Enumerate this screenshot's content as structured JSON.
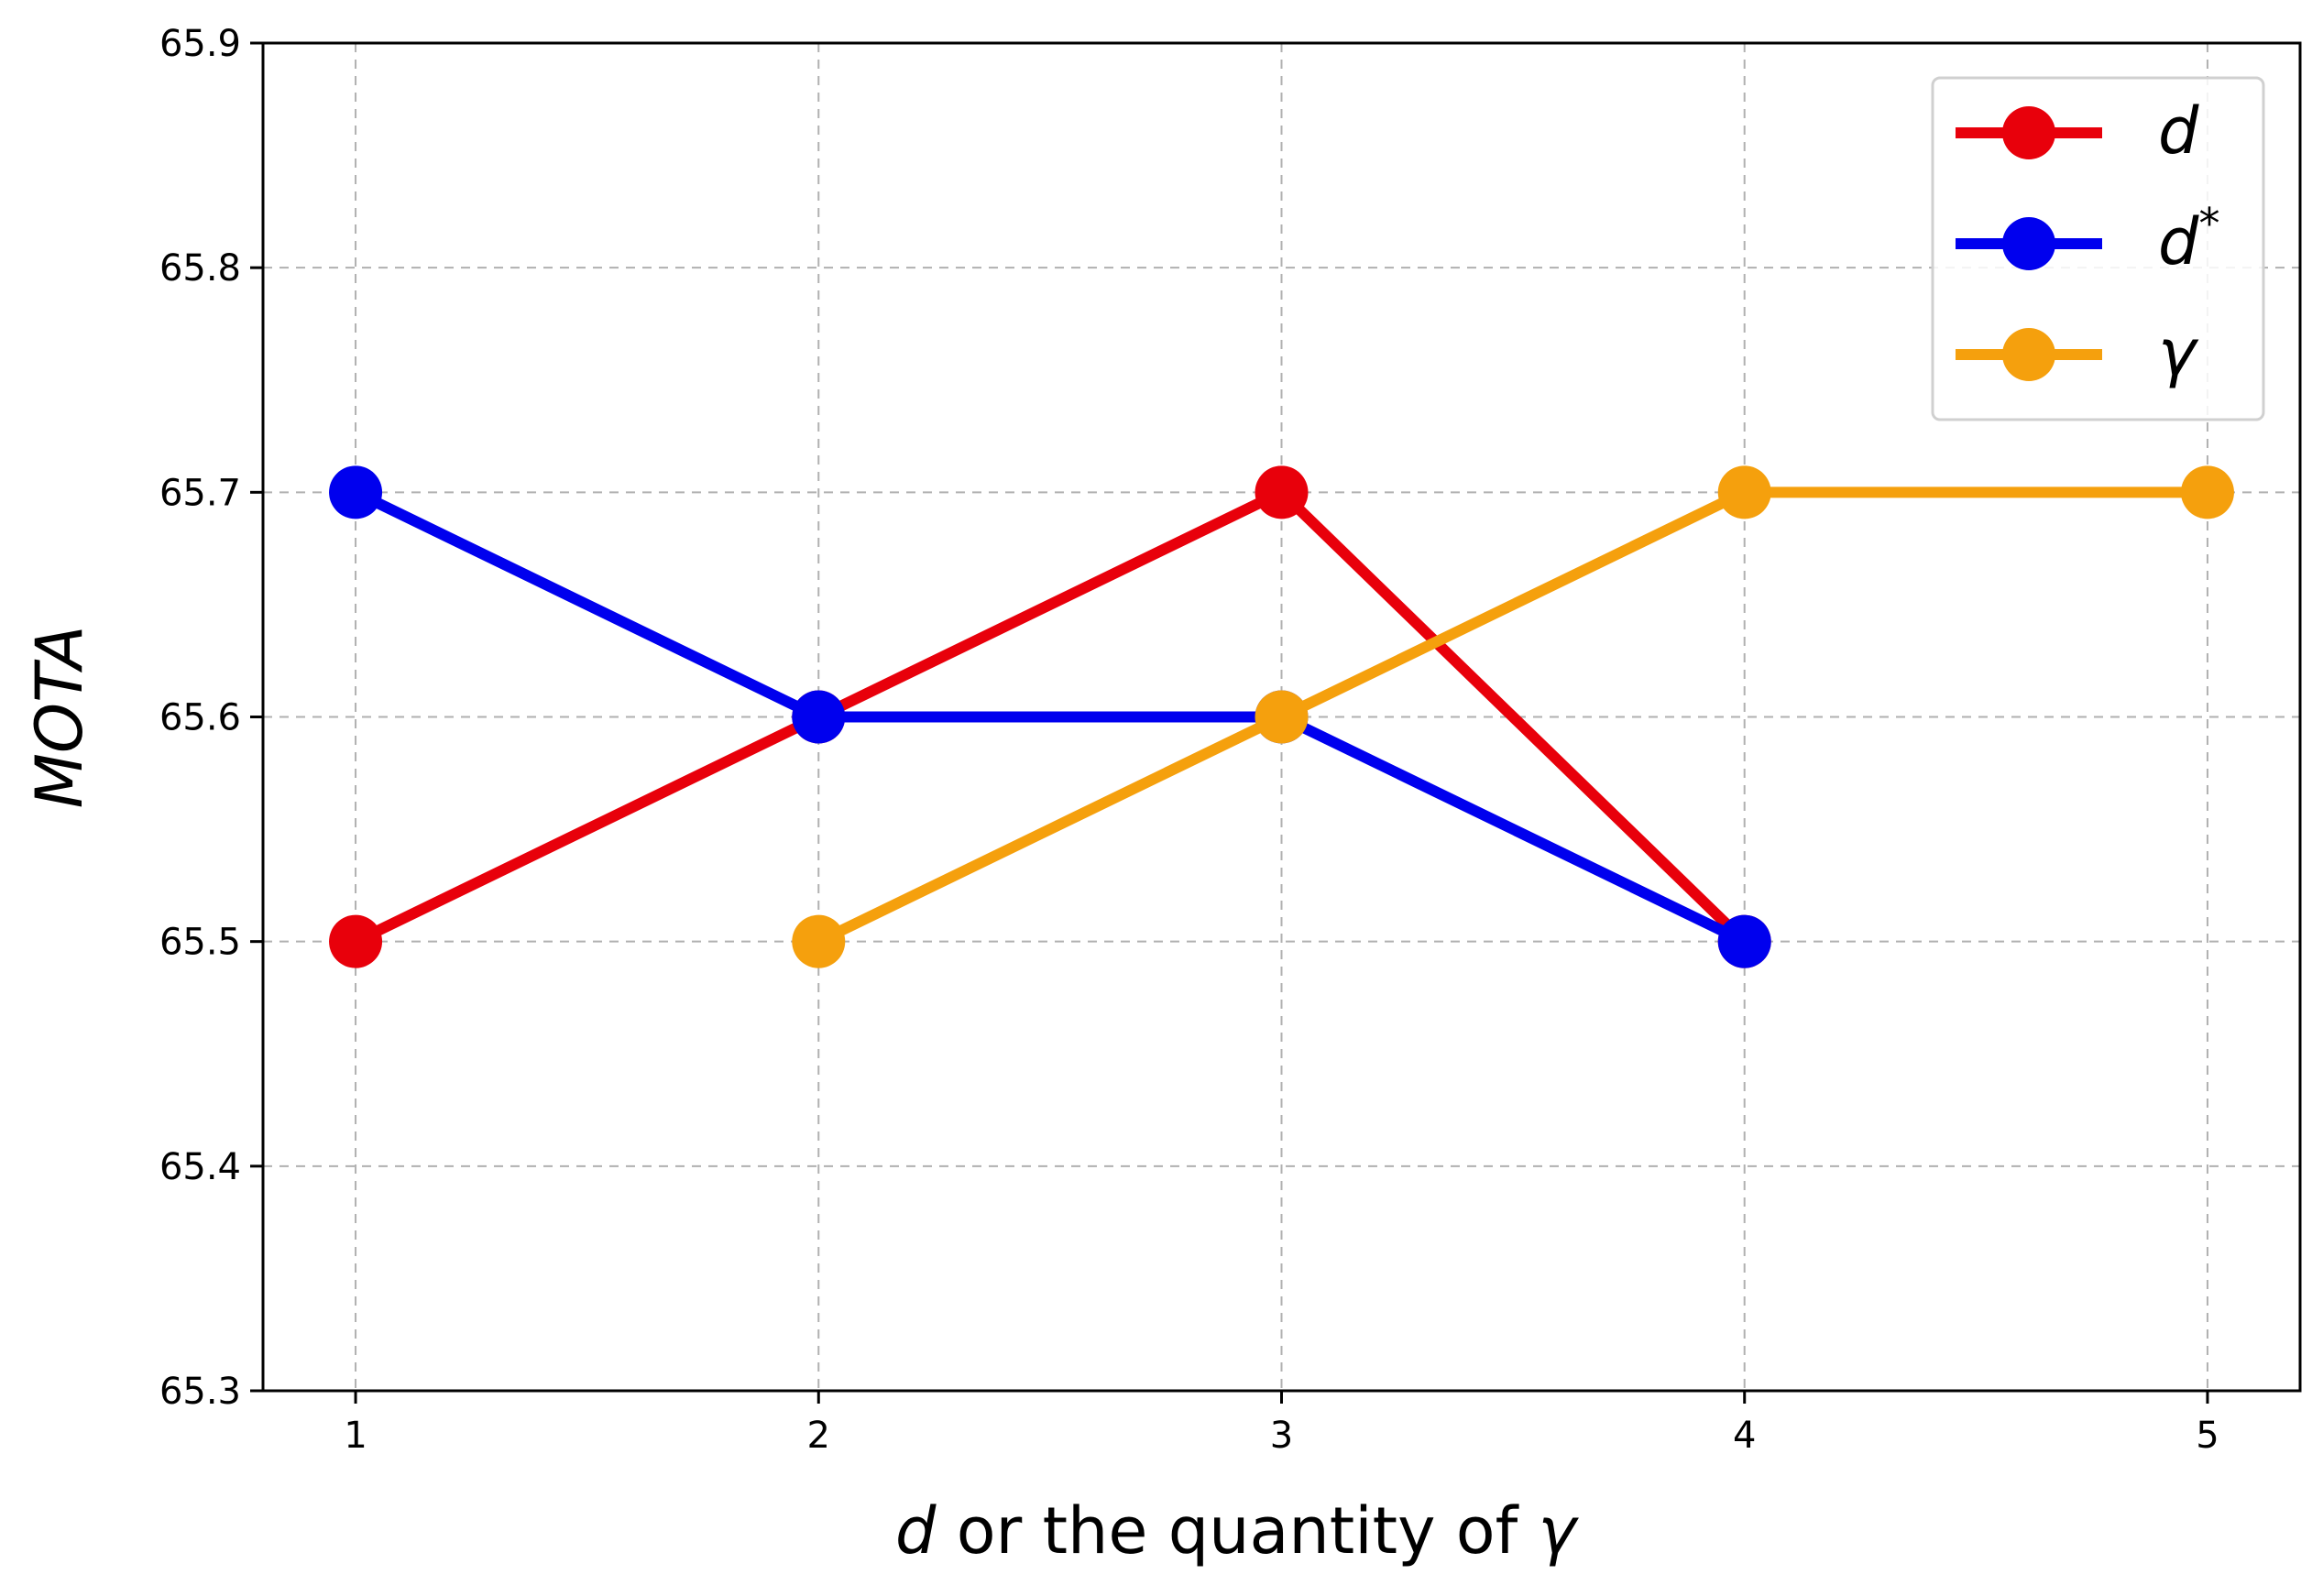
{
  "chart_data": {
    "type": "line",
    "xlabel_parts": [
      {
        "text": "d",
        "italic": true
      },
      {
        "text": " or the quantity of ",
        "italic": false
      },
      {
        "text": "γ",
        "italic": true
      }
    ],
    "ylabel": "MOTA",
    "xlim": [
      0.8,
      5.2
    ],
    "ylim": [
      65.3,
      65.9
    ],
    "xticks": [
      1,
      2,
      3,
      4,
      5
    ],
    "xtick_labels": [
      "1",
      "2",
      "3",
      "4",
      "5"
    ],
    "yticks": [
      65.3,
      65.4,
      65.5,
      65.6,
      65.7,
      65.8,
      65.9
    ],
    "ytick_labels": [
      "65.3",
      "65.4",
      "65.5",
      "65.6",
      "65.7",
      "65.8",
      "65.9"
    ],
    "grid": true,
    "legend_position": "top-right",
    "series": [
      {
        "name": "d",
        "name_sup": "",
        "color": "#e8000b",
        "x": [
          1,
          2,
          3,
          4
        ],
        "y": [
          65.5,
          65.6,
          65.7,
          65.5
        ]
      },
      {
        "name": "d",
        "name_sup": "*",
        "color": "#0000ee",
        "x": [
          1,
          2,
          3,
          4
        ],
        "y": [
          65.7,
          65.6,
          65.6,
          65.5
        ]
      },
      {
        "name": "γ",
        "name_sup": "",
        "color": "#f5a00d",
        "x": [
          2,
          3,
          4,
          5
        ],
        "y": [
          65.5,
          65.6,
          65.7,
          65.7
        ]
      }
    ]
  }
}
